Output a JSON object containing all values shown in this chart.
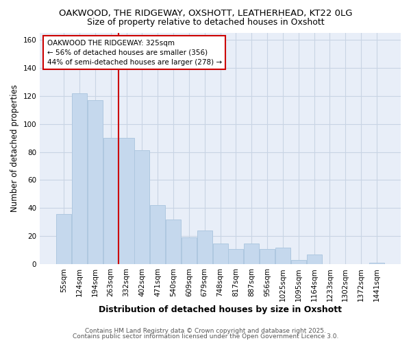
{
  "title_line1": "OAKWOOD, THE RIDGEWAY, OXSHOTT, LEATHERHEAD, KT22 0LG",
  "title_line2": "Size of property relative to detached houses in Oxshott",
  "xlabel": "Distribution of detached houses by size in Oxshott",
  "ylabel": "Number of detached properties",
  "bar_color": "#c5d8ed",
  "bar_edgecolor": "#aec8e0",
  "bar_linewidth": 0.7,
  "categories": [
    "55sqm",
    "124sqm",
    "194sqm",
    "263sqm",
    "332sqm",
    "402sqm",
    "471sqm",
    "540sqm",
    "609sqm",
    "679sqm",
    "748sqm",
    "817sqm",
    "887sqm",
    "956sqm",
    "1025sqm",
    "1095sqm",
    "1164sqm",
    "1233sqm",
    "1302sqm",
    "1372sqm",
    "1441sqm"
  ],
  "values": [
    36,
    122,
    117,
    90,
    90,
    81,
    42,
    32,
    19,
    24,
    15,
    11,
    15,
    11,
    12,
    3,
    7,
    0,
    0,
    0,
    1
  ],
  "ylim": [
    0,
    165
  ],
  "yticks": [
    0,
    20,
    40,
    60,
    80,
    100,
    120,
    140,
    160
  ],
  "vline_x": 4.0,
  "vline_color": "#cc0000",
  "annotation_title": "OAKWOOD THE RIDGEWAY: 325sqm",
  "annotation_line1": "← 56% of detached houses are smaller (356)",
  "annotation_line2": "44% of semi-detached houses are larger (278) →",
  "annotation_box_color": "#ffffff",
  "annotation_box_edge": "#cc0000",
  "grid_color": "#c8d4e4",
  "plot_bg_color": "#e8eef8",
  "fig_bg_color": "#ffffff",
  "footer_line1": "Contains HM Land Registry data © Crown copyright and database right 2025.",
  "footer_line2": "Contains public sector information licensed under the Open Government Licence 3.0.",
  "title_fontsize": 9.5,
  "subtitle_fontsize": 9.0,
  "ylabel_fontsize": 8.5,
  "xlabel_fontsize": 9.0,
  "tick_fontsize": 7.5,
  "annotation_fontsize": 7.5,
  "footer_fontsize": 6.5
}
